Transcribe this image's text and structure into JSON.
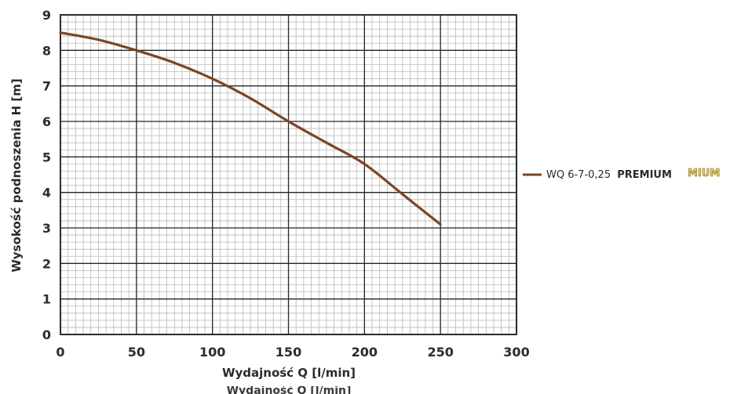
{
  "chart_data": {
    "type": "line",
    "xlabel": "Wydajność Q [l/min]",
    "ylabel": "Wysokość podnoszenia H [m]",
    "xlim": [
      0,
      300
    ],
    "ylim": [
      0,
      9
    ],
    "x_ticks": [
      "0",
      "50",
      "100",
      "150",
      "200",
      "250",
      "300"
    ],
    "y_ticks": [
      "0",
      "1",
      "2",
      "3",
      "4",
      "5",
      "6",
      "7",
      "8",
      "9"
    ],
    "grid": true,
    "legend_position": "right",
    "series": [
      {
        "name": "WQ 6-7-0,25 PREMIUM",
        "name_prefix": "WQ 6-7-0,25",
        "name_suffix": "PREMIUM",
        "color": "#7b4523",
        "x": [
          0,
          25,
          50,
          75,
          100,
          125,
          150,
          175,
          200,
          225,
          250
        ],
        "y": [
          8.5,
          8.3,
          8.0,
          7.65,
          7.2,
          6.65,
          6.0,
          5.4,
          4.8,
          3.95,
          3.1
        ]
      }
    ],
    "annotations": {
      "legend_ghost": "MIUM",
      "cut_off_caption": "Wydajność Q [l/min]"
    }
  }
}
